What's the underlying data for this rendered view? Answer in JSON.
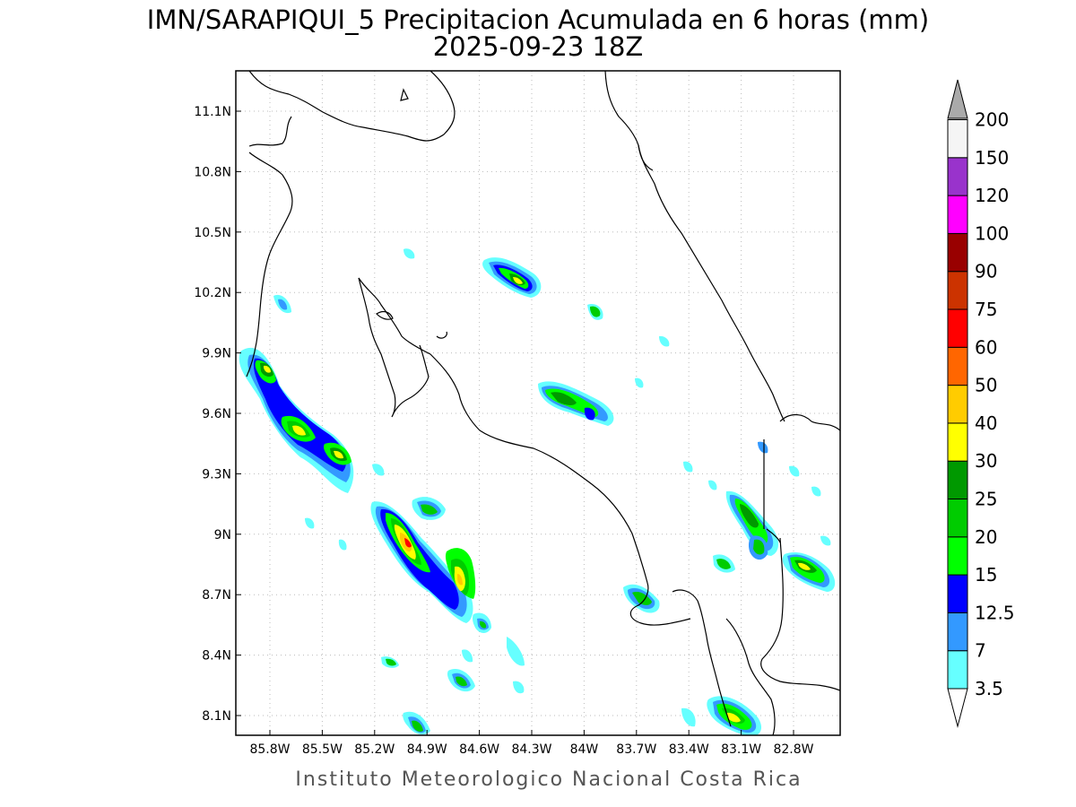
{
  "title": {
    "line1": "IMN/SARAPIQUI_5 Precipitacion Acumulada en 6 horas (mm)",
    "line2": "2025-09-23 18Z"
  },
  "credit": "Instituto Meteorologico Nacional Costa Rica",
  "axes": {
    "lon_labels": [
      "85.8W",
      "85.5W",
      "85.2W",
      "84.9W",
      "84.6W",
      "84.3W",
      "84W",
      "83.7W",
      "83.4W",
      "83.1W",
      "82.8W"
    ],
    "lat_labels": [
      "11.1N",
      "10.8N",
      "10.5N",
      "10.2N",
      "9.9N",
      "9.6N",
      "9.3N",
      "9N",
      "8.7N",
      "8.4N",
      "8.1N"
    ]
  },
  "colorbar": {
    "levels": [
      {
        "label": "3.5",
        "color": "#66ffff"
      },
      {
        "label": "7",
        "color": "#3399ff"
      },
      {
        "label": "12.5",
        "color": "#0000ff"
      },
      {
        "label": "15",
        "color": "#00ff00"
      },
      {
        "label": "20",
        "color": "#00cc00"
      },
      {
        "label": "25",
        "color": "#009900"
      },
      {
        "label": "30",
        "color": "#ffff00"
      },
      {
        "label": "40",
        "color": "#ffcc00"
      },
      {
        "label": "50",
        "color": "#ff6600"
      },
      {
        "label": "60",
        "color": "#ff0000"
      },
      {
        "label": "75",
        "color": "#cc3300"
      },
      {
        "label": "90",
        "color": "#990000"
      },
      {
        "label": "100",
        "color": "#ff00ff"
      },
      {
        "label": "120",
        "color": "#9933cc"
      },
      {
        "label": "150",
        "color": "#f5f5f5"
      },
      {
        "label": "200",
        "color": "#aaaaaa"
      }
    ]
  }
}
